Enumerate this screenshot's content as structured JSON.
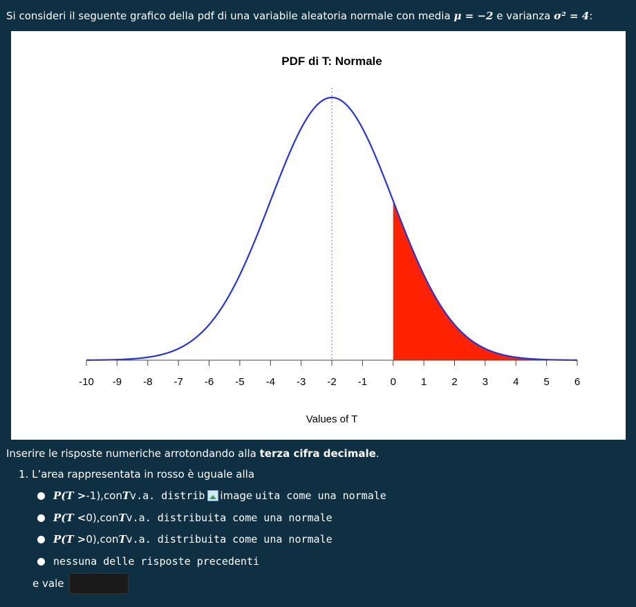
{
  "intro": {
    "text_before": "Si consideri il seguente grafico della pdf di una variabile aleatoria normale con media ",
    "mu_expr": "μ = −2",
    "text_mid": " e varianza ",
    "var_expr": "σ² = 4",
    "text_after": ":"
  },
  "chart_data": {
    "type": "line",
    "title": "PDF di T: Normale",
    "xlabel": "Values of T",
    "ylabel": "",
    "distribution": "normal",
    "mean": -2,
    "sd": 2,
    "xlim": [
      -10,
      6
    ],
    "x_ticks": [
      "-10",
      "-9",
      "-8",
      "-7",
      "-6",
      "-5",
      "-4",
      "-3",
      "-2",
      "-1",
      "0",
      "1",
      "2",
      "3",
      "4",
      "5",
      "6"
    ],
    "shaded_region": {
      "from": 0,
      "to": 6,
      "color": "#ff2200"
    },
    "mean_line": {
      "x": -2,
      "style": "dotted",
      "color": "#8888ff"
    },
    "curve_color": "#2233ee",
    "grid": false,
    "legend": "none"
  },
  "instructions": {
    "text": "Inserire le risposte numeriche arrotondando alla ",
    "bold": "terza cifra decimale",
    "end": "."
  },
  "question": {
    "number": "1.",
    "text": "L’area rappresentata in rosso è uguale alla",
    "options": [
      {
        "prob": "P(T >",
        "val": "-1",
        "close": "),",
        "rest_a": " con ",
        "var": "T",
        "rest_b": " v.a. distrib",
        "img_alt": "image",
        "rest_c": " uita come una normale"
      },
      {
        "prob": "P(T <",
        "val": "0",
        "close": "),",
        "rest_a": " con ",
        "var": "T",
        "rest_b": " v.a. distribuita come una normale"
      },
      {
        "prob": "P(T >",
        "val": "0",
        "close": "),",
        "rest_a": " con ",
        "var": "T",
        "rest_b": " v.a. distribuita come una normale"
      },
      {
        "text": "nessuna delle risposte precedenti"
      }
    ],
    "answer_label": "e vale",
    "answer_value": ""
  }
}
